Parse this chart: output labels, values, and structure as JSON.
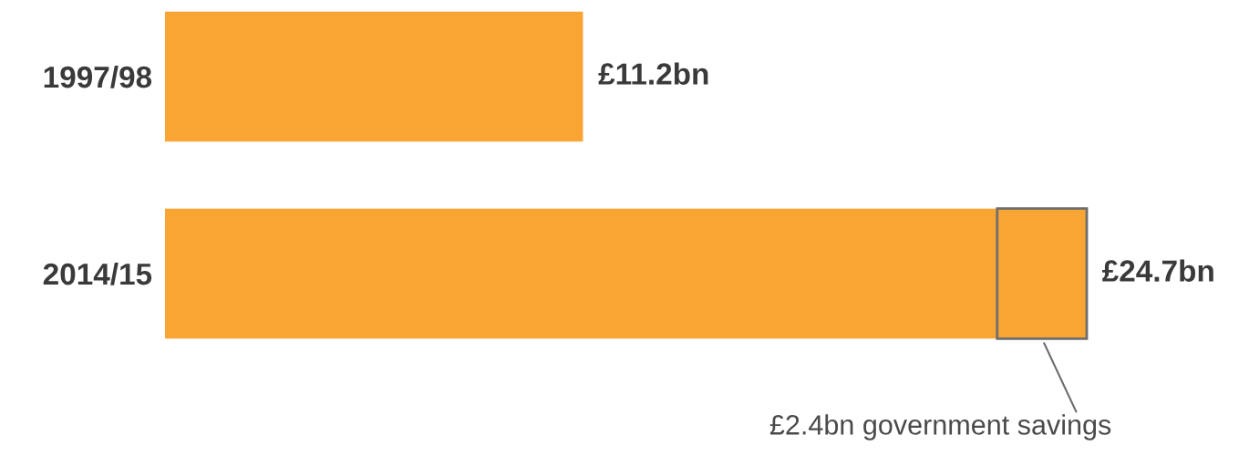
{
  "chart_data": {
    "type": "bar",
    "orientation": "horizontal",
    "stacked": true,
    "categories": [
      "1997/98",
      "2014/15"
    ],
    "series": [
      {
        "color": "#f9a533",
        "values": [
          11.2,
          22.3
        ]
      },
      {
        "color": "#f9a533",
        "values": [
          null,
          2.4
        ],
        "value_labels": [
          null,
          "£2.4bn government savings"
        ]
      }
    ],
    "totals": [
      "£11.2bn",
      "£24.7bn"
    ]
  }
}
